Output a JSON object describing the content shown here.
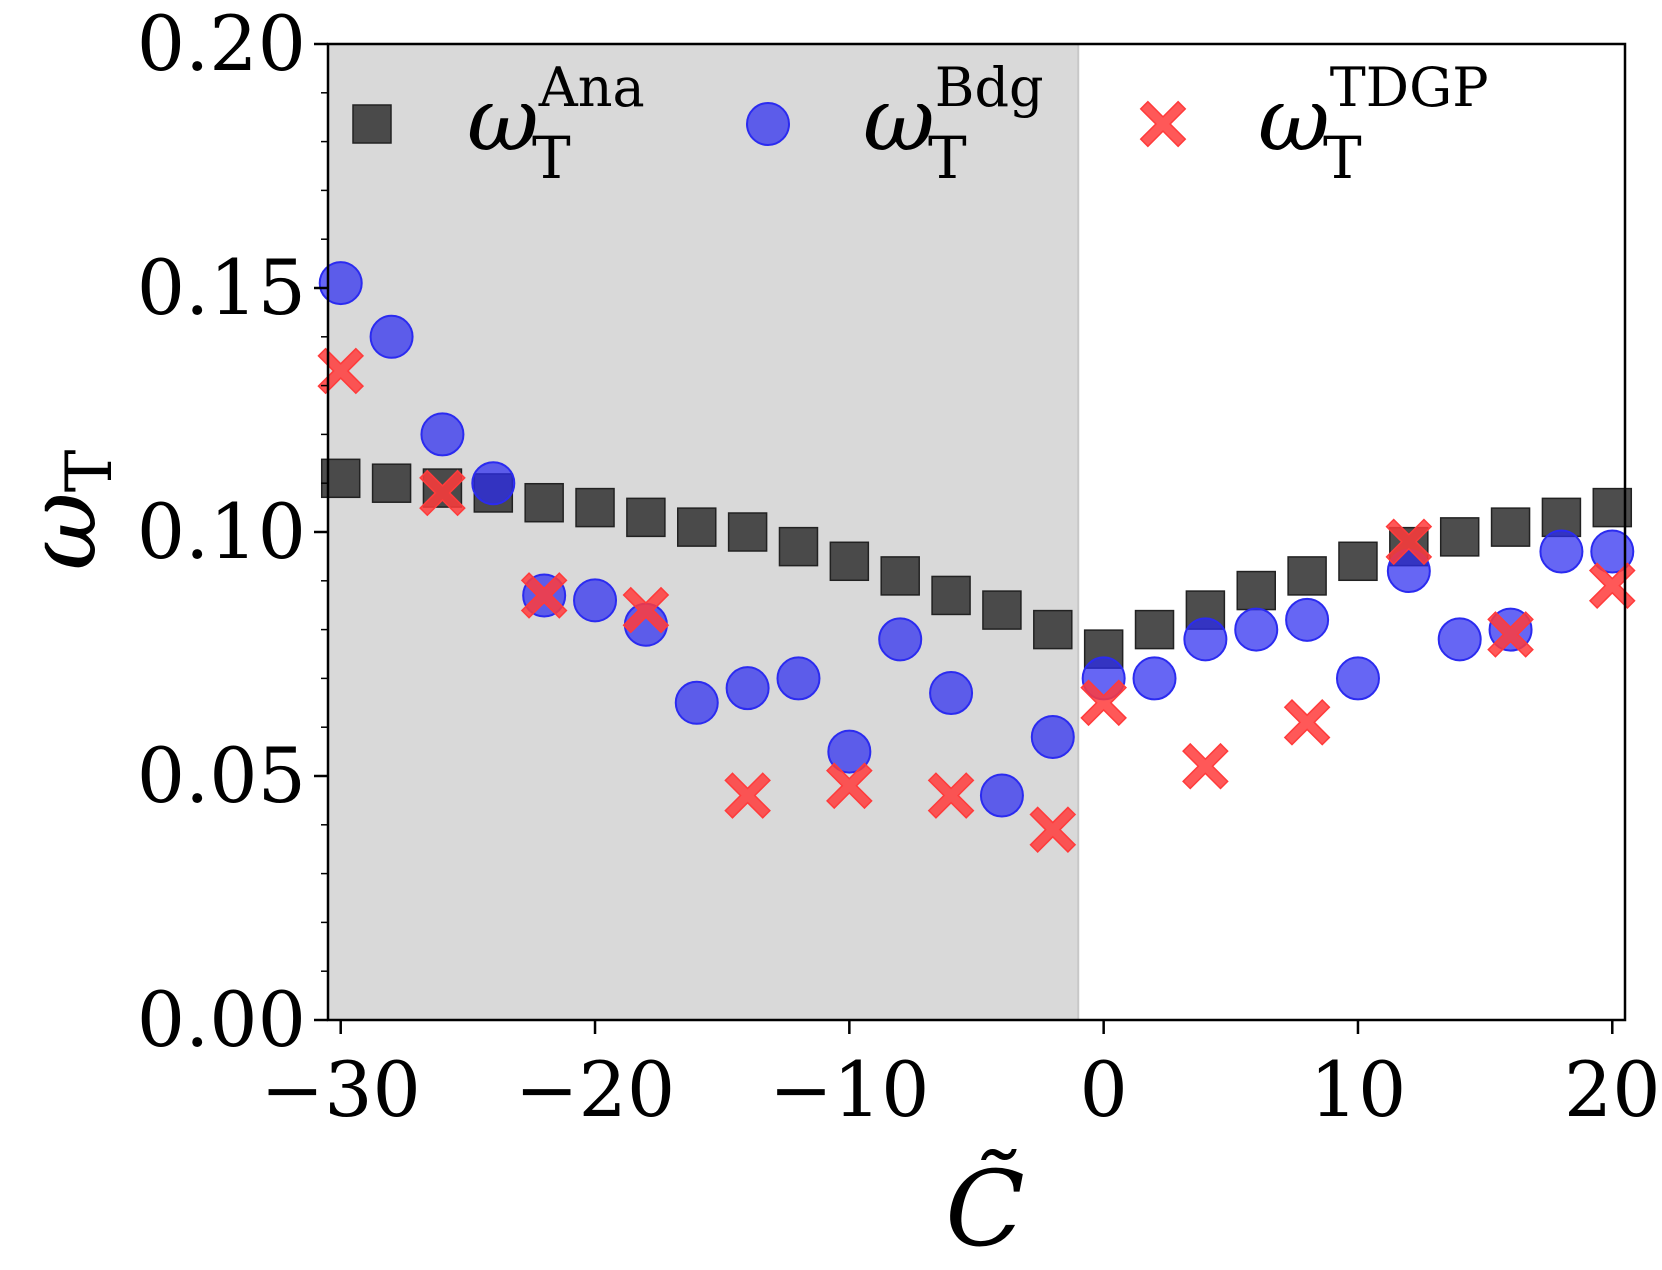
{
  "chart_data": {
    "type": "scatter",
    "xlabel": "C̃",
    "ylabel": "ω",
    "ylabel_sub": "T",
    "xlim": [
      -30.5,
      20.5
    ],
    "ylim": [
      0.0,
      0.2
    ],
    "xticks": [
      -30,
      -20,
      -10,
      0,
      10,
      20
    ],
    "xtick_labels": [
      "−30",
      "−20",
      "−10",
      "0",
      "10",
      "20"
    ],
    "yticks": [
      0.0,
      0.05,
      0.1,
      0.15,
      0.2
    ],
    "ytick_labels": [
      "0.00",
      "0.05",
      "0.10",
      "0.15",
      "0.20"
    ],
    "shaded_region": {
      "x0": -30.5,
      "x1": -1,
      "color": "#d9d9d9"
    },
    "grid": false,
    "legend_placement": "top",
    "series": [
      {
        "name": "Ana",
        "legend_symbol": "ω",
        "legend_sub": "T",
        "legend_sup": "Ana",
        "marker": "square",
        "color": "#3a3a3a",
        "x": [
          -30,
          -28,
          -26,
          -24,
          -22,
          -20,
          -18,
          -16,
          -14,
          -12,
          -10,
          -8,
          -6,
          -4,
          -2,
          0,
          2,
          4,
          6,
          8,
          10,
          12,
          14,
          16,
          18,
          20
        ],
        "y": [
          0.111,
          0.11,
          0.109,
          0.108,
          0.106,
          0.105,
          0.103,
          0.101,
          0.1,
          0.097,
          0.094,
          0.091,
          0.087,
          0.084,
          0.08,
          0.076,
          0.08,
          0.084,
          0.088,
          0.091,
          0.094,
          0.097,
          0.099,
          0.101,
          0.103,
          0.105
        ]
      },
      {
        "name": "Bdg",
        "legend_symbol": "ω",
        "legend_sub": "T",
        "legend_sup": "Bdg",
        "marker": "circle",
        "color": "#2b2bf0",
        "x": [
          -30,
          -28,
          -26,
          -24,
          -22,
          -20,
          -18,
          -16,
          -14,
          -12,
          -10,
          -8,
          -6,
          -4,
          -2,
          0,
          2,
          4,
          6,
          8,
          10,
          12,
          14,
          16,
          18,
          20
        ],
        "y": [
          0.151,
          0.14,
          0.12,
          0.11,
          0.087,
          0.086,
          0.081,
          0.065,
          0.068,
          0.07,
          0.055,
          0.078,
          0.067,
          0.046,
          0.058,
          0.07,
          0.07,
          0.078,
          0.08,
          0.082,
          0.07,
          0.092,
          0.078,
          0.08,
          0.096,
          0.096
        ]
      },
      {
        "name": "TDGP",
        "legend_symbol": "ω",
        "legend_sub": "T",
        "legend_sup": "TDGP",
        "marker": "x",
        "color": "#ff3b3b",
        "x": [
          -30,
          -26,
          -22,
          -18,
          -14,
          -10,
          -6,
          -2,
          0,
          4,
          8,
          12,
          16,
          20
        ],
        "y": [
          0.133,
          0.108,
          0.087,
          0.084,
          0.046,
          0.048,
          0.046,
          0.039,
          0.065,
          0.052,
          0.061,
          0.098,
          0.079,
          0.089
        ]
      }
    ]
  }
}
